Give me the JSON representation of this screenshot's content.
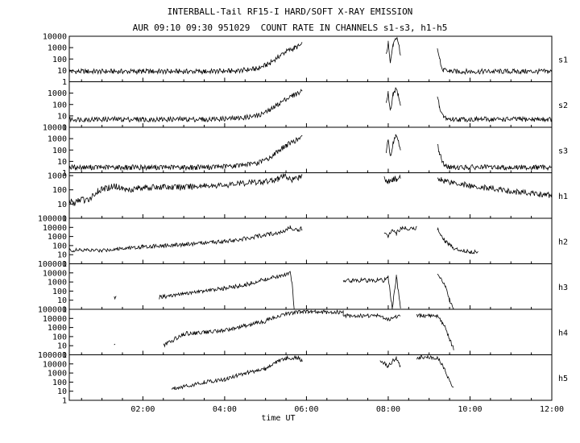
{
  "chart_data": {
    "type": "line",
    "title": "INTERBALL-Tail RF15-I HARD/SOFT X-RAY EMISSION",
    "subtitle": "AUR 09:10 09:30 951029  COUNT RATE IN CHANNELS s1-s3, h1-h5",
    "xlabel": "time UT",
    "x_ticks": [
      "02:00",
      "04:00",
      "06:00",
      "08:00",
      "10:00",
      "12:00"
    ],
    "x_range_hours": [
      0.2,
      12.0
    ],
    "y_scale": "log",
    "panels": [
      {
        "name": "s1",
        "y_ticks": [
          "1",
          "10",
          "100",
          "1000",
          "10000"
        ],
        "ymax_exp": 4,
        "segments": [
          [
            [
              0.2,
              8
            ],
            [
              2.0,
              8
            ],
            [
              3.5,
              8
            ],
            [
              4.3,
              9
            ],
            [
              4.8,
              14
            ],
            [
              5.1,
              40
            ],
            [
              5.3,
              150
            ],
            [
              5.5,
              450
            ],
            [
              5.7,
              900
            ],
            [
              5.9,
              1800
            ]
          ],
          [
            [
              7.95,
              200
            ],
            [
              8.0,
              2500
            ],
            [
              8.05,
              40
            ],
            [
              8.12,
              2000
            ],
            [
              8.18,
              8000
            ],
            [
              8.25,
              3000
            ],
            [
              8.3,
              200
            ]
          ],
          [
            [
              9.2,
              600
            ],
            [
              9.25,
              100
            ],
            [
              9.35,
              10
            ],
            [
              9.5,
              8
            ],
            [
              12.0,
              8
            ]
          ]
        ]
      },
      {
        "name": "s2",
        "y_ticks": [
          "1",
          "10",
          "100",
          "1000"
        ],
        "ymax_exp": 4,
        "segments": [
          [
            [
              0.2,
              5
            ],
            [
              2.0,
              5
            ],
            [
              3.5,
              5
            ],
            [
              4.3,
              6
            ],
            [
              4.8,
              10
            ],
            [
              5.1,
              30
            ],
            [
              5.3,
              100
            ],
            [
              5.5,
              300
            ],
            [
              5.7,
              700
            ],
            [
              5.9,
              1500
            ]
          ],
          [
            [
              7.95,
              100
            ],
            [
              8.0,
              1000
            ],
            [
              8.05,
              30
            ],
            [
              8.12,
              800
            ],
            [
              8.18,
              2000
            ],
            [
              8.25,
              700
            ],
            [
              8.3,
              100
            ]
          ],
          [
            [
              9.2,
              500
            ],
            [
              9.25,
              80
            ],
            [
              9.35,
              8
            ],
            [
              9.5,
              5
            ],
            [
              12.0,
              5
            ]
          ]
        ]
      },
      {
        "name": "s3",
        "y_ticks": [
          "1",
          "10",
          "100",
          "1000",
          "10000"
        ],
        "ymax_exp": 4,
        "segments": [
          [
            [
              0.2,
              3
            ],
            [
              2.0,
              3
            ],
            [
              3.5,
              3
            ],
            [
              4.3,
              4
            ],
            [
              4.8,
              7
            ],
            [
              5.1,
              20
            ],
            [
              5.3,
              80
            ],
            [
              5.5,
              250
            ],
            [
              5.7,
              600
            ],
            [
              5.9,
              1300
            ]
          ],
          [
            [
              7.95,
              80
            ],
            [
              8.0,
              700
            ],
            [
              8.05,
              25
            ],
            [
              8.12,
              500
            ],
            [
              8.18,
              1500
            ],
            [
              8.25,
              500
            ],
            [
              8.3,
              80
            ]
          ],
          [
            [
              9.2,
              400
            ],
            [
              9.25,
              60
            ],
            [
              9.35,
              6
            ],
            [
              9.5,
              3
            ],
            [
              12.0,
              3
            ]
          ]
        ]
      },
      {
        "name": "h1",
        "y_ticks": [
          "1",
          "10",
          "100",
          "1000"
        ],
        "ymax_exp": 3.2,
        "segments": [
          [
            [
              0.2,
              20
            ],
            [
              0.3,
              10
            ],
            [
              0.5,
              25
            ],
            [
              0.6,
              15
            ],
            [
              0.9,
              80
            ],
            [
              1.3,
              200
            ],
            [
              1.6,
              100
            ],
            [
              2.0,
              150
            ],
            [
              2.5,
              150
            ],
            [
              3.0,
              150
            ],
            [
              3.5,
              200
            ],
            [
              4.0,
              220
            ],
            [
              4.5,
              300
            ],
            [
              5.0,
              400
            ],
            [
              5.3,
              600
            ],
            [
              5.5,
              1000
            ],
            [
              5.6,
              500
            ],
            [
              5.8,
              800
            ],
            [
              5.9,
              1000
            ]
          ],
          [
            [
              7.9,
              700
            ],
            [
              8.0,
              400
            ],
            [
              8.1,
              500
            ],
            [
              8.2,
              600
            ],
            [
              8.3,
              900
            ]
          ],
          [
            [
              9.2,
              800
            ],
            [
              9.3,
              500
            ],
            [
              10.0,
              200
            ],
            [
              11.0,
              80
            ],
            [
              12.0,
              40
            ]
          ]
        ]
      },
      {
        "name": "h2",
        "y_ticks": [
          "1",
          "10",
          "100",
          "1000",
          "10000",
          "100000"
        ],
        "ymax_exp": 5,
        "segments": [
          [
            [
              0.2,
              30
            ],
            [
              0.6,
              30
            ],
            [
              1.0,
              30
            ],
            [
              1.5,
              50
            ],
            [
              2.0,
              80
            ],
            [
              2.5,
              100
            ],
            [
              3.0,
              130
            ],
            [
              3.5,
              200
            ],
            [
              4.0,
              300
            ],
            [
              4.5,
              600
            ],
            [
              5.0,
              1500
            ],
            [
              5.4,
              3000
            ],
            [
              5.6,
              10000
            ],
            [
              5.8,
              5000
            ],
            [
              5.9,
              8000
            ]
          ],
          [
            [
              7.9,
              3000
            ],
            [
              8.0,
              800
            ],
            [
              8.1,
              8000
            ],
            [
              8.2,
              2000
            ],
            [
              8.3,
              8000
            ],
            [
              8.7,
              8000
            ]
          ],
          [
            [
              9.2,
              8000
            ],
            [
              9.4,
              300
            ],
            [
              9.6,
              50
            ],
            [
              10.0,
              20
            ],
            [
              10.2,
              20
            ]
          ]
        ]
      },
      {
        "name": "h3",
        "y_ticks": [
          "1",
          "10",
          "100",
          "1000",
          "10000",
          "100000"
        ],
        "ymax_exp": 5,
        "segments": [
          [
            [
              1.3,
              20
            ],
            [
              1.35,
              20
            ]
          ],
          [
            [
              2.4,
              20
            ],
            [
              3.0,
              50
            ],
            [
              3.5,
              100
            ],
            [
              4.0,
              200
            ],
            [
              4.5,
              500
            ],
            [
              5.0,
              2000
            ],
            [
              5.4,
              5000
            ],
            [
              5.6,
              10000
            ],
            [
              5.65,
              500
            ],
            [
              5.7,
              1
            ]
          ],
          [
            [
              6.9,
              1500
            ],
            [
              7.5,
              1500
            ],
            [
              7.9,
              1500
            ],
            [
              8.0,
              3000
            ],
            [
              8.1,
              1
            ],
            [
              8.2,
              5000
            ],
            [
              8.3,
              1
            ]
          ],
          [
            [
              9.2,
              8000
            ],
            [
              9.4,
              300
            ],
            [
              9.5,
              10
            ],
            [
              9.6,
              1
            ]
          ]
        ]
      },
      {
        "name": "h4",
        "y_ticks": [
          "1",
          "10",
          "100",
          "1000",
          "10000",
          "100000"
        ],
        "ymax_exp": 5,
        "segments": [
          [
            [
              1.3,
              10
            ],
            [
              1.32,
              10
            ]
          ],
          [
            [
              2.5,
              10
            ],
            [
              3.0,
              200
            ],
            [
              3.5,
              300
            ],
            [
              4.0,
              500
            ],
            [
              4.5,
              1500
            ],
            [
              5.0,
              5000
            ],
            [
              5.3,
              20000
            ],
            [
              5.6,
              40000
            ],
            [
              5.9,
              50000
            ]
          ],
          [
            [
              5.9,
              50000
            ],
            [
              6.9,
              50000
            ],
            [
              6.9,
              20000
            ],
            [
              7.8,
              20000
            ],
            [
              8.0,
              8000
            ],
            [
              8.2,
              15000
            ],
            [
              8.3,
              20000
            ]
          ],
          [
            [
              8.7,
              20000
            ],
            [
              9.2,
              20000
            ],
            [
              9.4,
              1000
            ],
            [
              9.5,
              50
            ],
            [
              9.6,
              5
            ]
          ]
        ]
      },
      {
        "name": "h5",
        "y_ticks": [
          "1",
          "10",
          "100",
          "1000",
          "10000",
          "100000"
        ],
        "ymax_exp": 5,
        "segments": [
          [
            [
              2.7,
              20
            ],
            [
              3.2,
              50
            ],
            [
              3.5,
              100
            ],
            [
              4.0,
              200
            ],
            [
              4.5,
              1000
            ],
            [
              5.0,
              3000
            ],
            [
              5.3,
              20000
            ],
            [
              5.5,
              40000
            ],
            [
              5.8,
              50000
            ],
            [
              5.9,
              20000
            ]
          ],
          [
            [
              7.8,
              30000
            ],
            [
              8.0,
              5000
            ],
            [
              8.1,
              20000
            ],
            [
              8.2,
              40000
            ],
            [
              8.3,
              5000
            ]
          ],
          [
            [
              8.7,
              50000
            ],
            [
              9.2,
              50000
            ],
            [
              9.4,
              2000
            ],
            [
              9.5,
              100
            ],
            [
              9.6,
              20
            ]
          ]
        ]
      }
    ]
  }
}
